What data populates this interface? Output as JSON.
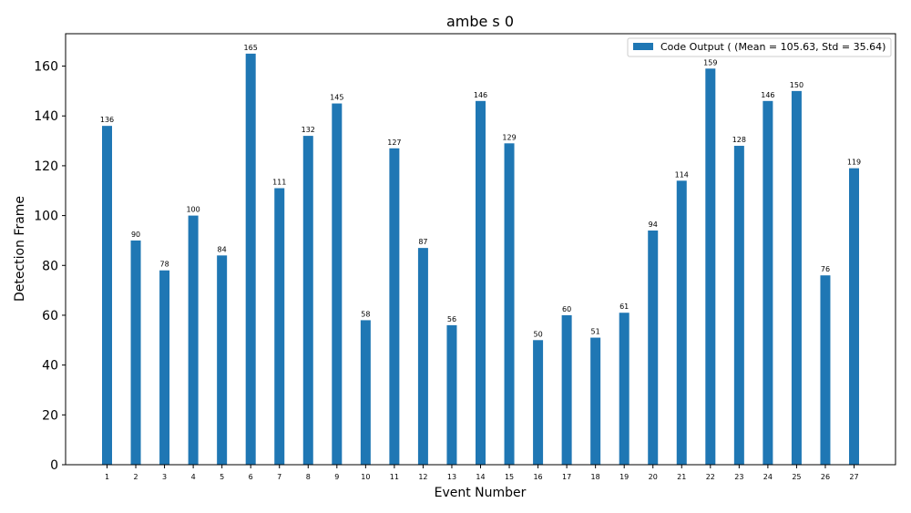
{
  "chart_data": {
    "type": "bar",
    "title": "ambe s 0",
    "xlabel": "Event Number",
    "ylabel": "Detection Frame",
    "categories": [
      "1",
      "2",
      "3",
      "4",
      "5",
      "6",
      "7",
      "8",
      "9",
      "10",
      "11",
      "12",
      "13",
      "14",
      "15",
      "16",
      "17",
      "18",
      "19",
      "20",
      "21",
      "22",
      "23",
      "24",
      "25",
      "26",
      "27"
    ],
    "series": [
      {
        "name": "Code Output ( (Mean = 105.63, Std = 35.64)",
        "color": "#1f77b4",
        "values": [
          136,
          90,
          78,
          100,
          84,
          165,
          111,
          132,
          145,
          58,
          127,
          87,
          56,
          146,
          129,
          50,
          60,
          51,
          61,
          94,
          114,
          159,
          128,
          146,
          150,
          76,
          119
        ]
      }
    ],
    "ylim": [
      0,
      173
    ],
    "yticks": [
      0,
      20,
      40,
      60,
      80,
      100,
      120,
      140,
      160
    ],
    "grid": false,
    "legend_position": "top-right"
  }
}
